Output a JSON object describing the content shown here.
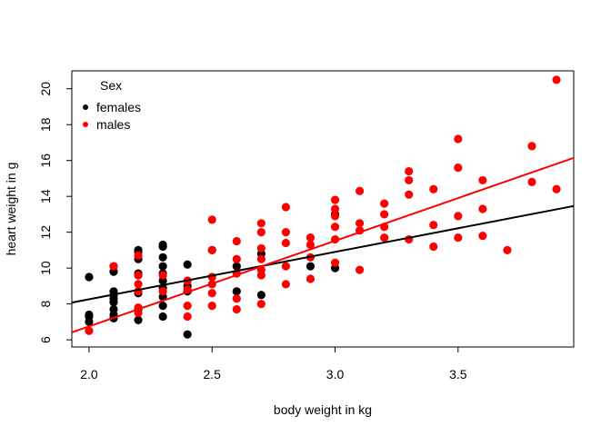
{
  "chart_data": {
    "type": "scatter",
    "title": "",
    "xlabel": "body weight in kg",
    "ylabel": "heart weight in g",
    "xlim": [
      1.93,
      3.97
    ],
    "ylim": [
      5.6,
      21.0
    ],
    "xticks": [
      2.0,
      2.5,
      3.0,
      3.5
    ],
    "xtick_labels": [
      "2.0",
      "2.5",
      "3.0",
      "3.5"
    ],
    "yticks": [
      6,
      8,
      10,
      12,
      14,
      16,
      18,
      20
    ],
    "ytick_labels": [
      "6",
      "8",
      "10",
      "12",
      "14",
      "16",
      "18",
      "20"
    ],
    "grid": false,
    "legend": {
      "title": "Sex",
      "position": "top-left",
      "entries": [
        "females",
        "males"
      ]
    },
    "series": [
      {
        "name": "females",
        "color": "#000000",
        "x": [
          2.0,
          2.0,
          2.0,
          2.0,
          2.1,
          2.1,
          2.1,
          2.1,
          2.1,
          2.1,
          2.1,
          2.1,
          2.1,
          2.2,
          2.2,
          2.2,
          2.2,
          2.2,
          2.2,
          2.2,
          2.2,
          2.3,
          2.3,
          2.3,
          2.3,
          2.3,
          2.3,
          2.3,
          2.3,
          2.3,
          2.3,
          2.4,
          2.4,
          2.4,
          2.4,
          2.5,
          2.6,
          2.6,
          2.7,
          2.7,
          2.9,
          3.0,
          3.0
        ],
        "y": [
          7.0,
          7.3,
          7.4,
          9.5,
          7.2,
          7.4,
          7.7,
          8.1,
          8.3,
          8.5,
          8.7,
          9.8,
          10.1,
          7.1,
          7.7,
          8.6,
          9.6,
          9.7,
          10.5,
          10.9,
          11.0,
          7.3,
          7.9,
          8.4,
          8.9,
          9.3,
          9.7,
          10.1,
          10.6,
          11.2,
          11.3,
          6.3,
          8.7,
          9.0,
          10.2,
          11.0,
          8.7,
          10.1,
          8.5,
          10.8,
          10.1,
          10.0,
          13.0
        ],
        "trend": {
          "intercept": 2.98,
          "slope": 2.64
        }
      },
      {
        "name": "males",
        "color": "#ff0000",
        "x": [
          2.0,
          2.1,
          2.2,
          2.2,
          2.2,
          2.2,
          2.2,
          2.2,
          2.3,
          2.3,
          2.4,
          2.4,
          2.4,
          2.4,
          2.5,
          2.5,
          2.5,
          2.5,
          2.5,
          2.5,
          2.6,
          2.6,
          2.6,
          2.6,
          2.6,
          2.7,
          2.7,
          2.7,
          2.7,
          2.7,
          2.7,
          2.7,
          2.8,
          2.8,
          2.8,
          2.8,
          2.8,
          2.9,
          2.9,
          2.9,
          2.9,
          3.0,
          3.0,
          3.0,
          3.0,
          3.0,
          3.0,
          3.1,
          3.1,
          3.1,
          3.1,
          3.2,
          3.2,
          3.2,
          3.2,
          3.3,
          3.3,
          3.3,
          3.3,
          3.4,
          3.4,
          3.4,
          3.5,
          3.5,
          3.5,
          3.5,
          3.6,
          3.6,
          3.6,
          3.7,
          3.8,
          3.8,
          3.9,
          3.9
        ],
        "y": [
          6.5,
          10.1,
          7.5,
          7.8,
          8.7,
          9.1,
          9.6,
          10.7,
          8.7,
          9.6,
          7.3,
          7.9,
          8.8,
          9.3,
          7.9,
          8.6,
          9.1,
          9.5,
          11.0,
          12.7,
          7.7,
          8.3,
          9.7,
          10.5,
          11.5,
          8.0,
          9.6,
          9.9,
          10.5,
          11.1,
          12.0,
          12.5,
          9.1,
          10.1,
          11.4,
          12.0,
          13.4,
          9.4,
          10.6,
          11.3,
          11.7,
          10.3,
          11.6,
          12.3,
          12.9,
          13.3,
          13.8,
          9.9,
          12.1,
          12.5,
          14.3,
          11.7,
          12.3,
          13.0,
          13.6,
          11.6,
          14.1,
          14.9,
          15.4,
          11.2,
          12.4,
          14.4,
          11.7,
          12.9,
          15.6,
          17.2,
          11.8,
          13.3,
          14.9,
          11.0,
          14.8,
          16.8,
          14.4,
          20.5
        ],
        "trend": {
          "intercept": -2.79,
          "slope": 4.77
        }
      }
    ]
  }
}
